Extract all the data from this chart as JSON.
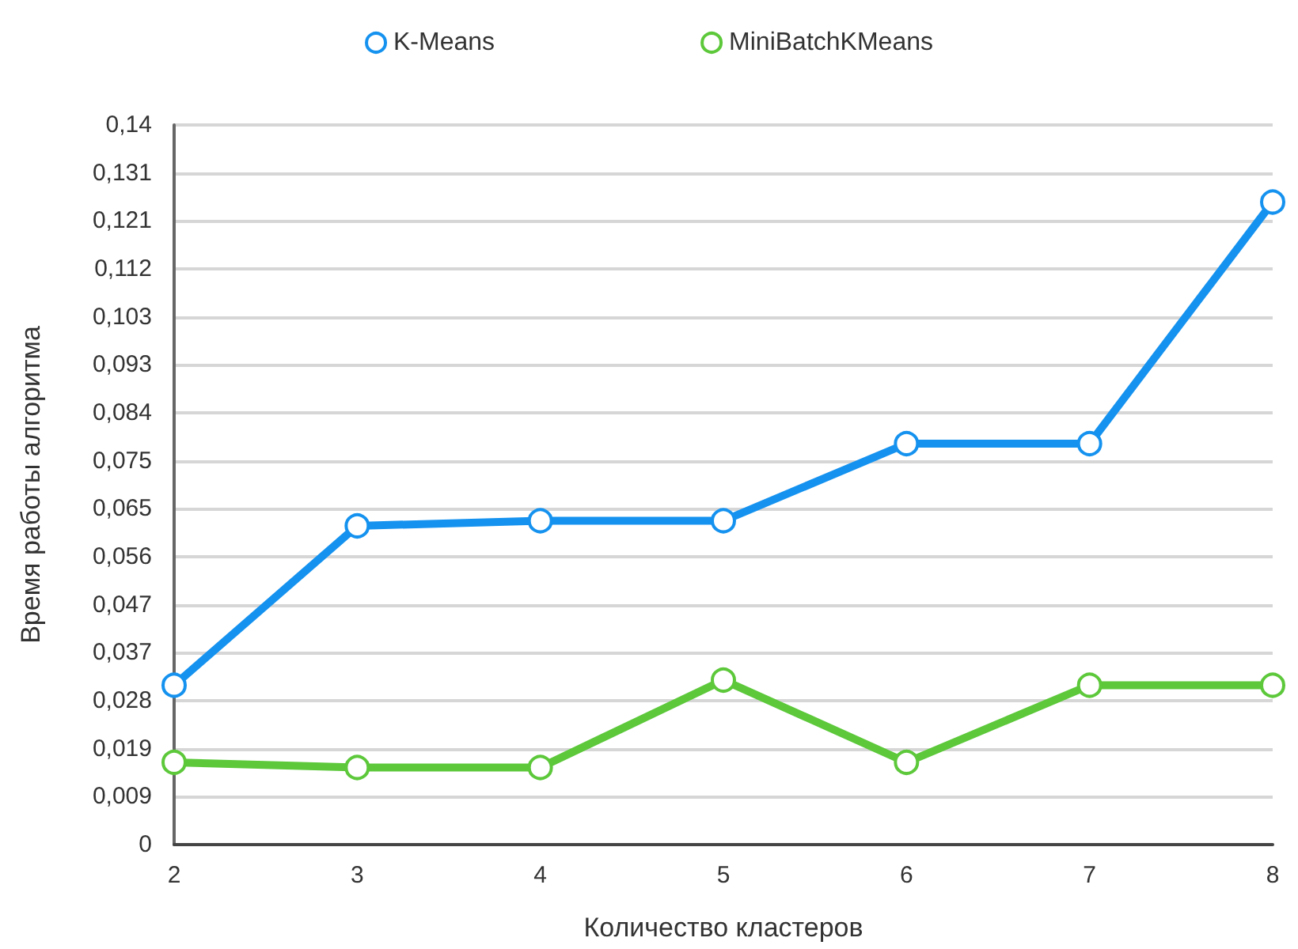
{
  "chart_data": {
    "type": "line",
    "xlabel": "Количество кластеров",
    "ylabel": "Время работы алгоритма",
    "categories": [
      "2",
      "3",
      "4",
      "5",
      "6",
      "7",
      "8"
    ],
    "series": [
      {
        "name": "K-Means",
        "color": "#1592ef",
        "values": [
          0.031,
          0.062,
          0.063,
          0.063,
          0.078,
          0.078,
          0.125
        ]
      },
      {
        "name": "MiniBatchKMeans",
        "color": "#5cc83a",
        "values": [
          0.016,
          0.015,
          0.015,
          0.032,
          0.016,
          0.031,
          0.031
        ]
      }
    ],
    "ylim": [
      0,
      0.14
    ],
    "yticks": [
      0,
      {
        "value": 0.00933,
        "label": "0,009"
      },
      {
        "value": 0.01867,
        "label": "0,019"
      },
      {
        "value": 0.028,
        "label": "0,028"
      },
      {
        "value": 0.03733,
        "label": "0,037"
      },
      {
        "value": 0.04667,
        "label": "0,047"
      },
      {
        "value": 0.056,
        "label": "0,056"
      },
      {
        "value": 0.06533,
        "label": "0,065"
      },
      {
        "value": 0.07467,
        "label": "0,075"
      },
      {
        "value": 0.084,
        "label": "0,084"
      },
      {
        "value": 0.09333,
        "label": "0,093"
      },
      {
        "value": 0.10267,
        "label": "0,103"
      },
      {
        "value": 0.112,
        "label": "0,112"
      },
      {
        "value": 0.12133,
        "label": "0,121"
      },
      {
        "value": 0.13067,
        "label": "0,131"
      },
      {
        "value": 0.14,
        "label": "0,14"
      }
    ],
    "grid": "y",
    "legend": "top",
    "marker": "circle",
    "line_style": "solid"
  }
}
